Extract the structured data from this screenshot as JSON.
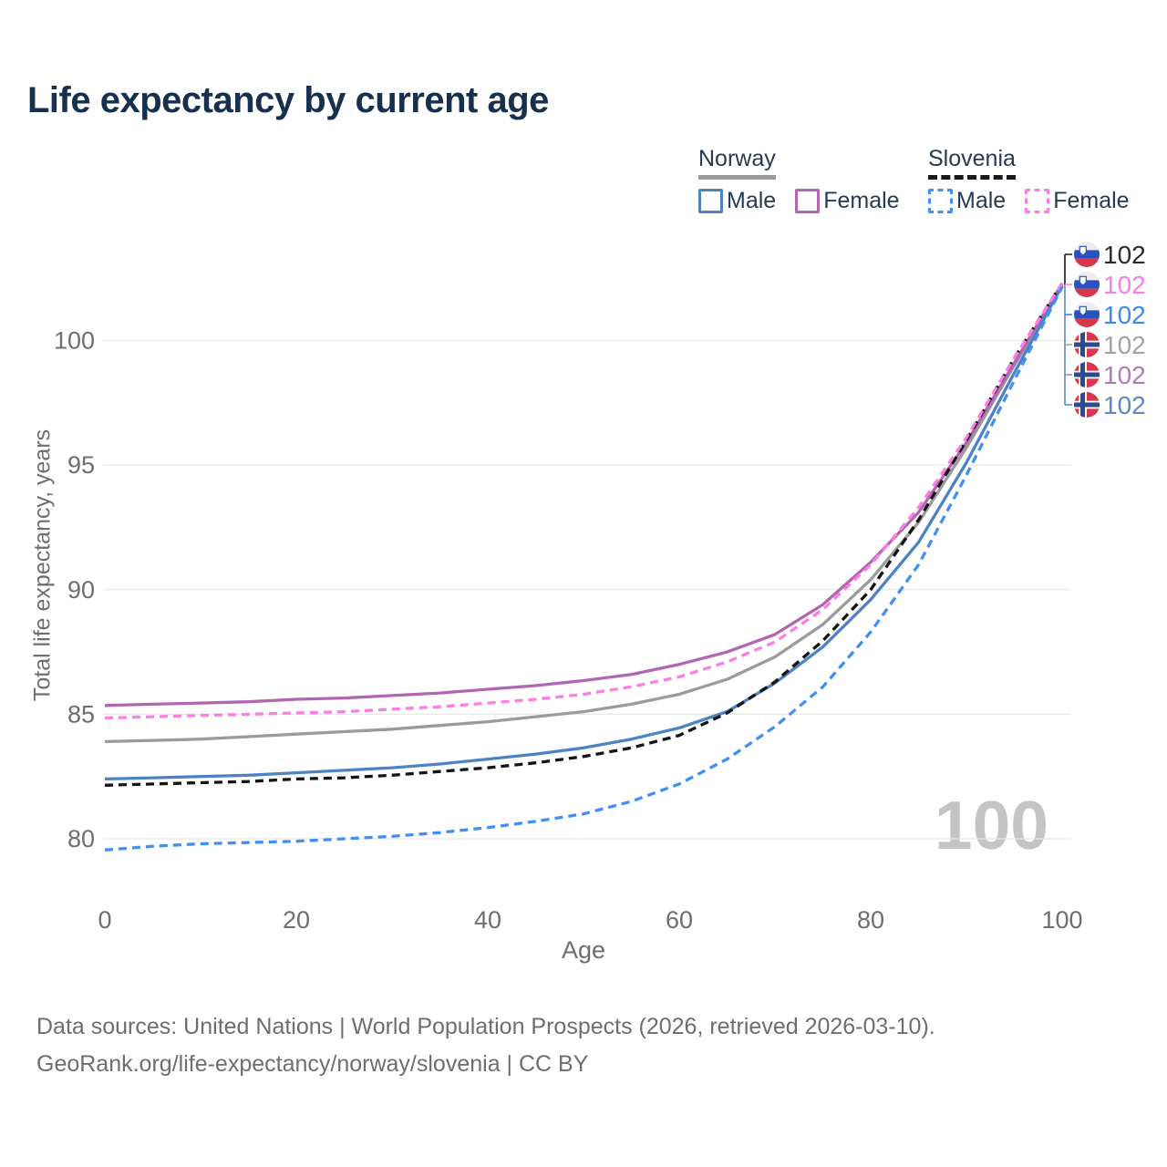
{
  "title": "Life expectancy by current age",
  "watermark": "100",
  "legend": {
    "groups": [
      {
        "label": "Norway",
        "line_style": "solid",
        "underline_color": "#9b9b9b",
        "items": [
          {
            "label": "Male",
            "color": "#4d82c4",
            "dashed": false
          },
          {
            "label": "Female",
            "color": "#b266b2",
            "dashed": false
          }
        ]
      },
      {
        "label": "Slovenia",
        "line_style": "dashed",
        "underline_color": "#1a1a1a",
        "items": [
          {
            "label": "Male",
            "color": "#418ff5",
            "dashed": true
          },
          {
            "label": "Female",
            "color": "#fb7de5",
            "dashed": true
          }
        ]
      }
    ]
  },
  "chart_data": {
    "type": "line",
    "title": "Life expectancy by current age",
    "xlabel": "Age",
    "ylabel": "Total life expectancy, years",
    "x_ticks": [
      0,
      20,
      40,
      60,
      80,
      100
    ],
    "y_ticks": [
      80,
      85,
      90,
      95,
      100
    ],
    "xlim": [
      0,
      100
    ],
    "ylim": [
      78.5,
      103.5
    ],
    "grid": "horizontal-only",
    "gridline_color": "#e8e8e8",
    "x": [
      0,
      5,
      10,
      15,
      20,
      25,
      30,
      35,
      40,
      45,
      50,
      55,
      60,
      65,
      70,
      75,
      80,
      85,
      90,
      95,
      100
    ],
    "series": [
      {
        "name": "Norway Both sexes",
        "country": "Norway",
        "sex": "Both",
        "color": "#9b9b9b",
        "dash": false,
        "values": [
          83.9,
          83.95,
          84.0,
          84.1,
          84.2,
          84.3,
          84.4,
          84.55,
          84.7,
          84.9,
          85.1,
          85.4,
          85.8,
          86.4,
          87.3,
          88.6,
          90.4,
          92.7,
          95.7,
          99.0,
          102.25
        ]
      },
      {
        "name": "Norway Female",
        "country": "Norway",
        "sex": "Female",
        "color": "#b266b2",
        "dash": false,
        "values": [
          85.35,
          85.4,
          85.45,
          85.5,
          85.6,
          85.65,
          85.75,
          85.85,
          86.0,
          86.15,
          86.35,
          86.6,
          87.0,
          87.5,
          88.2,
          89.4,
          91.1,
          93.1,
          95.9,
          99.1,
          102.3
        ]
      },
      {
        "name": "Norway Male",
        "country": "Norway",
        "sex": "Male",
        "color": "#4d82c4",
        "dash": false,
        "values": [
          82.4,
          82.45,
          82.5,
          82.55,
          82.65,
          82.75,
          82.85,
          83.0,
          83.2,
          83.4,
          83.65,
          84.0,
          84.45,
          85.1,
          86.25,
          87.7,
          89.6,
          91.9,
          95.1,
          98.7,
          102.2
        ]
      },
      {
        "name": "Slovenia Both sexes",
        "country": "Slovenia",
        "sex": "Both",
        "color": "#141414",
        "dash": true,
        "values": [
          82.15,
          82.2,
          82.25,
          82.3,
          82.4,
          82.45,
          82.55,
          82.7,
          82.85,
          83.05,
          83.3,
          83.65,
          84.15,
          85.05,
          86.3,
          87.95,
          90.0,
          92.8,
          96.0,
          99.3,
          102.3
        ]
      },
      {
        "name": "Slovenia Female",
        "country": "Slovenia",
        "sex": "Female",
        "color": "#fb7de5",
        "dash": true,
        "values": [
          84.85,
          84.9,
          84.95,
          85.0,
          85.05,
          85.1,
          85.2,
          85.3,
          85.45,
          85.6,
          85.8,
          86.1,
          86.5,
          87.1,
          87.9,
          89.2,
          91.0,
          93.3,
          96.1,
          99.3,
          102.3
        ]
      },
      {
        "name": "Slovenia Male",
        "country": "Slovenia",
        "sex": "Male",
        "color": "#418ff5",
        "dash": true,
        "values": [
          79.55,
          79.7,
          79.8,
          79.85,
          79.9,
          80.0,
          80.1,
          80.25,
          80.45,
          80.7,
          81.0,
          81.5,
          82.2,
          83.2,
          84.5,
          86.1,
          88.3,
          91.0,
          94.6,
          98.4,
          102.15
        ]
      }
    ],
    "end_labels": [
      {
        "text": "102",
        "series": "Slovenia Both sexes",
        "color": "#2b2b2b",
        "flag": "slovenia"
      },
      {
        "text": "102",
        "series": "Slovenia Female",
        "color": "#fb7ce7",
        "flag": "slovenia"
      },
      {
        "text": "102",
        "series": "Slovenia Male",
        "color": "#3d87f2",
        "flag": "slovenia"
      },
      {
        "text": "102",
        "series": "Norway Both sexes",
        "color": "#a3a3a3",
        "flag": "norway"
      },
      {
        "text": "102",
        "series": "Norway Female",
        "color": "#b07ab8",
        "flag": "norway"
      },
      {
        "text": "102",
        "series": "Norway Male",
        "color": "#5d87c8",
        "flag": "norway"
      }
    ],
    "flag_colors": {
      "norway_red": "#d8364b",
      "norway_navy": "#2b4a8f",
      "norway_white": "#ffffff",
      "slovenia_white": "#ededed",
      "slovenia_blue": "#2b52bc",
      "slovenia_red": "#d8364b"
    }
  },
  "footer": {
    "line1": "Data sources: United Nations | World Population Prospects (2026, retrieved 2026-03-10).",
    "line2": "GeoRank.org/life-expectancy/norway/slovenia | CC BY"
  }
}
